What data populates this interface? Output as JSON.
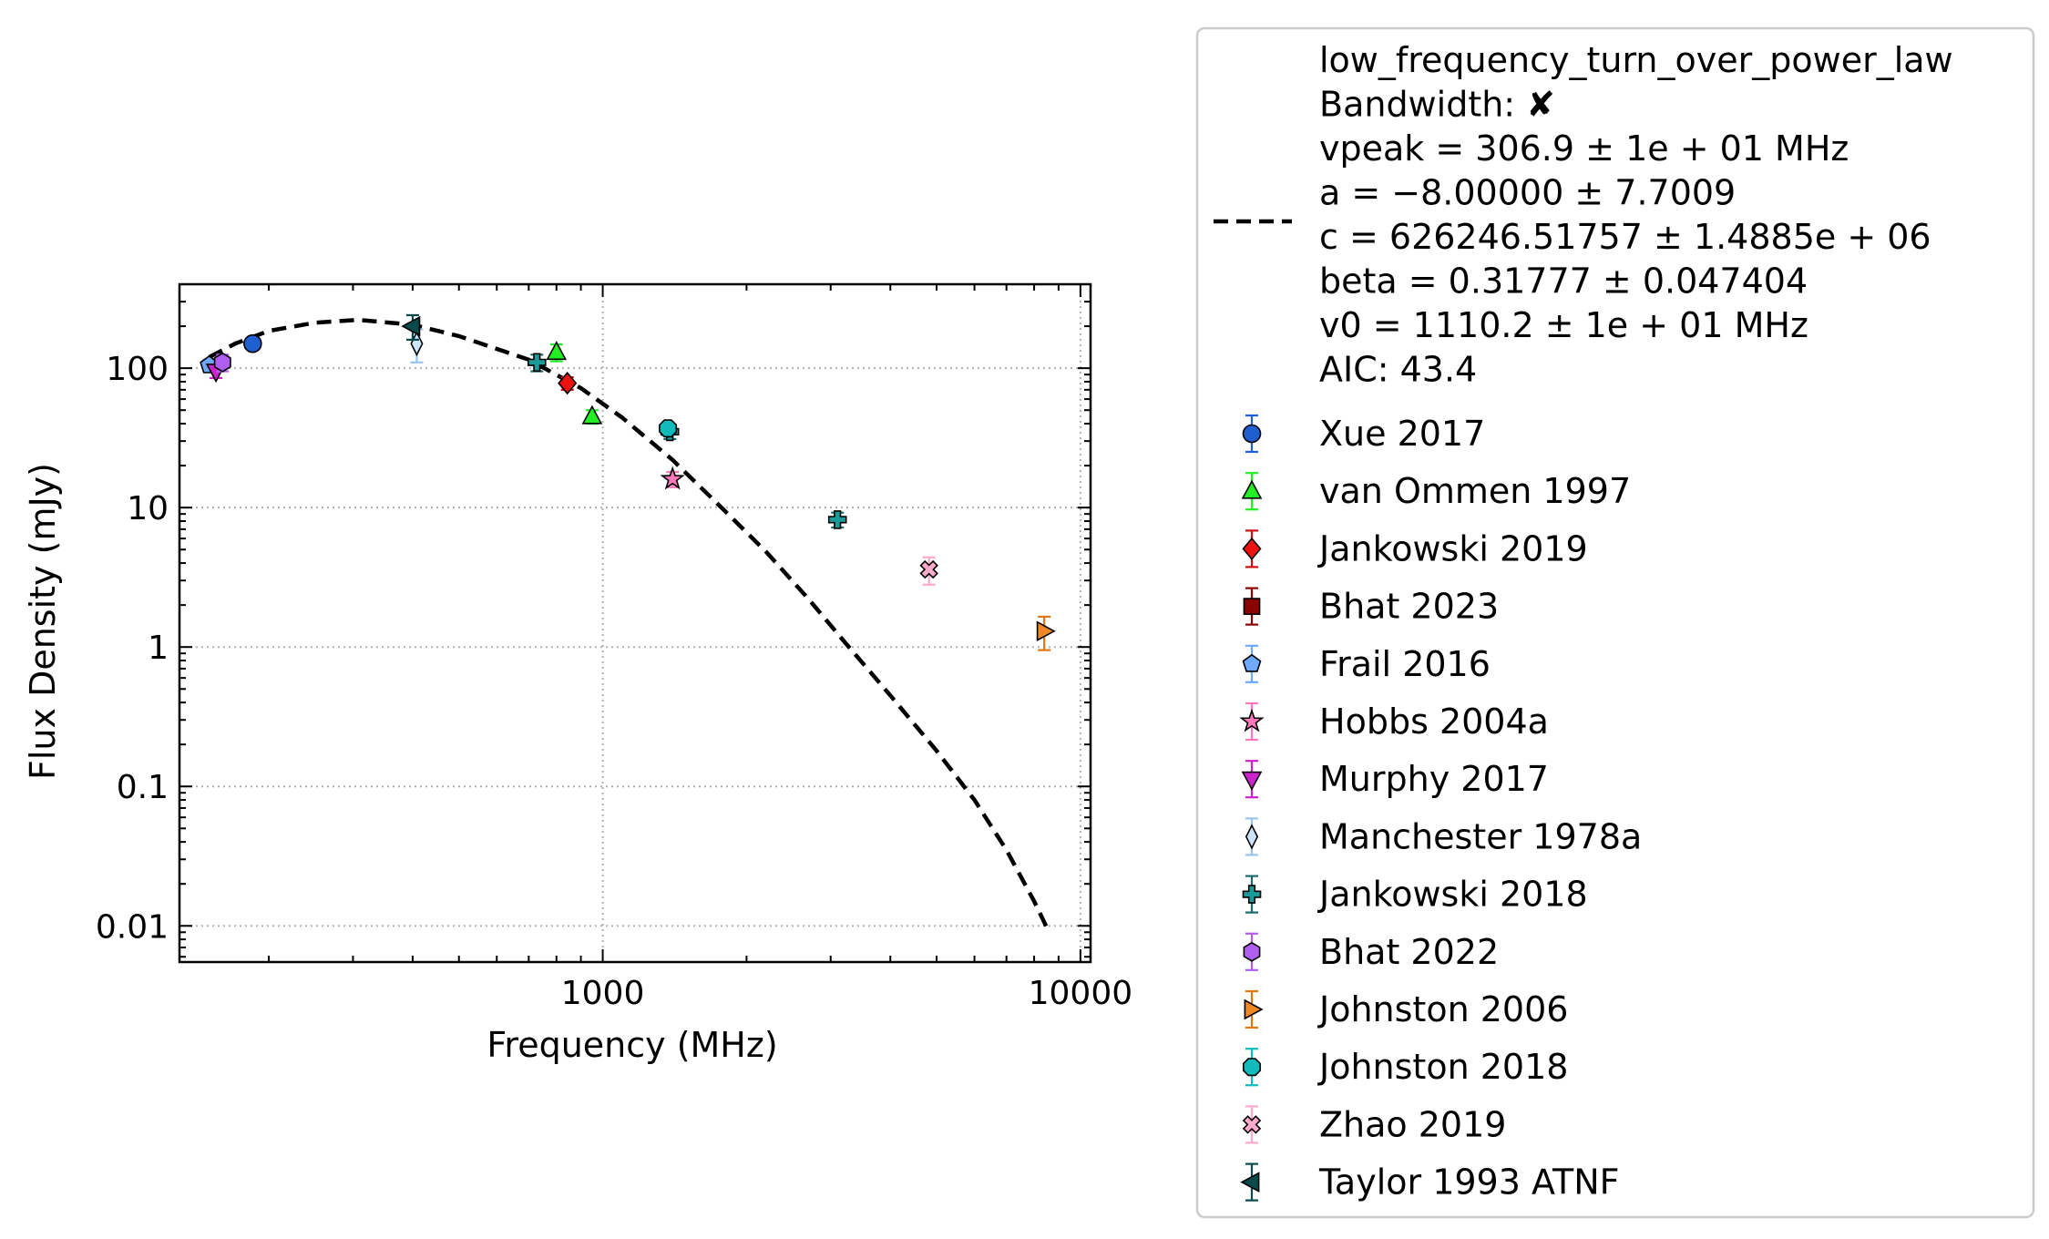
{
  "chart_data": {
    "type": "scatter",
    "xlabel": "Frequency (MHz)",
    "ylabel": "Flux Density (mJy)",
    "xscale": "log",
    "yscale": "log",
    "xlim": [
      130,
      10500
    ],
    "ylim": [
      0.0055,
      400
    ],
    "x_ticks": [
      {
        "value": 1000,
        "label": "1000"
      },
      {
        "value": 10000,
        "label": "10000"
      }
    ],
    "y_ticks": [
      {
        "value": 100,
        "label": "100"
      },
      {
        "value": 10,
        "label": "10"
      },
      {
        "value": 1,
        "label": "1"
      },
      {
        "value": 0.1,
        "label": "0.1"
      },
      {
        "value": 0.01,
        "label": "0.01"
      }
    ],
    "grid": true,
    "legend_position": "outside-right",
    "fit": {
      "name": "low_frequency_turn_over_power_law",
      "label_lines": [
        "low_frequency_turn_over_power_law",
        "Bandwidth: ✘",
        "vpeak = 306.9 ± 1e + 01 MHz",
        "a = −8.00000 ± 7.7009",
        "c = 626246.51757 ± 1.4885e + 06",
        "beta = 0.31777 ± 0.047404",
        "v0 = 1110.2 ± 1e + 01 MHz",
        "AIC: 43.4"
      ],
      "color": "#000000",
      "points": [
        [
          150,
          120
        ],
        [
          170,
          150
        ],
        [
          200,
          185
        ],
        [
          250,
          212
        ],
        [
          307,
          222
        ],
        [
          400,
          205
        ],
        [
          500,
          170
        ],
        [
          700,
          115
        ],
        [
          900,
          72
        ],
        [
          1100,
          44
        ],
        [
          1400,
          22
        ],
        [
          1800,
          9.5
        ],
        [
          2200,
          4.8
        ],
        [
          2700,
          2.2
        ],
        [
          3200,
          1.1
        ],
        [
          4000,
          0.45
        ],
        [
          5000,
          0.18
        ],
        [
          6000,
          0.08
        ],
        [
          7000,
          0.035
        ],
        [
          8000,
          0.015
        ],
        [
          8600,
          0.009
        ]
      ]
    },
    "series": [
      {
        "name": "Xue 2017",
        "marker": "circle",
        "color": "#1f5fd0",
        "ecolor": "#1f5fd0",
        "points": [
          [
            185,
            150,
            0
          ]
        ]
      },
      {
        "name": "van Ommen 1997",
        "marker": "triangle-up",
        "color": "#22ee22",
        "ecolor": "#22ee22",
        "points": [
          [
            800,
            130,
            18
          ],
          [
            950,
            45,
            5
          ]
        ]
      },
      {
        "name": "Jankowski 2019",
        "marker": "diamond",
        "color": "#ee1111",
        "ecolor": "#cc1111",
        "points": [
          [
            843,
            78,
            8
          ]
        ]
      },
      {
        "name": "Bhat 2023",
        "marker": "square",
        "color": "#8b0000",
        "ecolor": "#8b0000",
        "points": []
      },
      {
        "name": "Frail 2016",
        "marker": "pentagon",
        "color": "#6fa8ff",
        "ecolor": "#6fa8ff",
        "points": [
          [
            150,
            105,
            10
          ]
        ]
      },
      {
        "name": "Hobbs 2004a",
        "marker": "star",
        "color": "#ff77bb",
        "ecolor": "#ff77bb",
        "points": [
          [
            1400,
            16,
            2
          ]
        ]
      },
      {
        "name": "Murphy 2017",
        "marker": "triangle-down",
        "color": "#cc22cc",
        "ecolor": "#cc22cc",
        "points": [
          [
            155,
            95,
            10
          ]
        ]
      },
      {
        "name": "Manchester 1978a",
        "marker": "thin-diamond",
        "color": "#cce4ff",
        "ecolor": "#99c4f0",
        "points": [
          [
            408,
            150,
            40
          ]
        ]
      },
      {
        "name": "Jankowski 2018",
        "marker": "plus-filled",
        "color": "#1a9a9a",
        "ecolor": "#1a6a6a",
        "points": [
          [
            728,
            110,
            15
          ],
          [
            1382,
            35,
            4
          ],
          [
            3100,
            8.2,
            1
          ]
        ]
      },
      {
        "name": "Bhat 2022",
        "marker": "hexagon",
        "color": "#b05ef0",
        "ecolor": "#b05ef0",
        "points": [
          [
            160,
            110,
            15
          ]
        ]
      },
      {
        "name": "Johnston 2006",
        "marker": "triangle-right",
        "color": "#ee8822",
        "ecolor": "#dd7711",
        "points": [
          [
            8400,
            1.3,
            0.35
          ]
        ]
      },
      {
        "name": "Johnston 2018",
        "marker": "octagon",
        "color": "#11bbbb",
        "ecolor": "#11bbbb",
        "points": [
          [
            1369,
            37,
            4
          ]
        ]
      },
      {
        "name": "Zhao 2019",
        "marker": "x-filled",
        "color": "#ffaacc",
        "ecolor": "#ffaacc",
        "points": [
          [
            4820,
            3.6,
            0.8
          ]
        ]
      },
      {
        "name": "Taylor 1993 ATNF",
        "marker": "triangle-left",
        "color": "#0a4a4a",
        "ecolor": "#0a4a4a",
        "points": [
          [
            400,
            200,
            40
          ]
        ]
      }
    ]
  }
}
